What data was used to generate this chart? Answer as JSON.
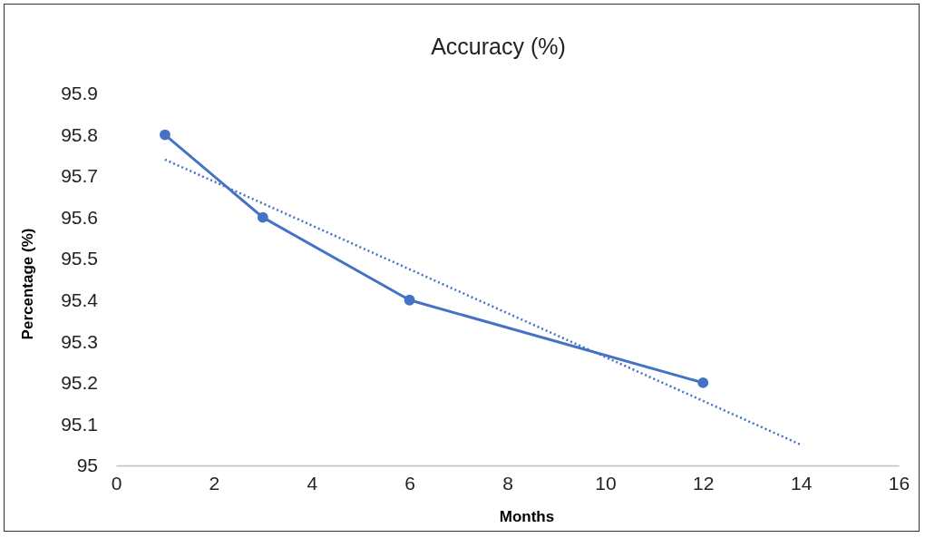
{
  "chart_data": {
    "type": "line",
    "title": "Accuracy (%)",
    "xlabel": "Months",
    "ylabel": "Percentage (%)",
    "xlim": [
      0,
      16
    ],
    "xticks": [
      0,
      2,
      4,
      6,
      8,
      10,
      12,
      14,
      16
    ],
    "ylim": [
      95,
      95.9
    ],
    "yticks": [
      95,
      95.1,
      95.2,
      95.3,
      95.4,
      95.5,
      95.6,
      95.7,
      95.8,
      95.9
    ],
    "series": [
      {
        "color": "#4472c4",
        "x": [
          1,
          3,
          6,
          12
        ],
        "values": [
          95.8,
          95.6,
          95.4,
          95.2
        ],
        "marker": "circle",
        "line_style": "solid"
      },
      {
        "type": "line",
        "color": "#4472c4",
        "x": [
          1,
          14
        ],
        "values": [
          95.74,
          95.05
        ],
        "marker": "none",
        "line_style": "dotted"
      }
    ]
  }
}
